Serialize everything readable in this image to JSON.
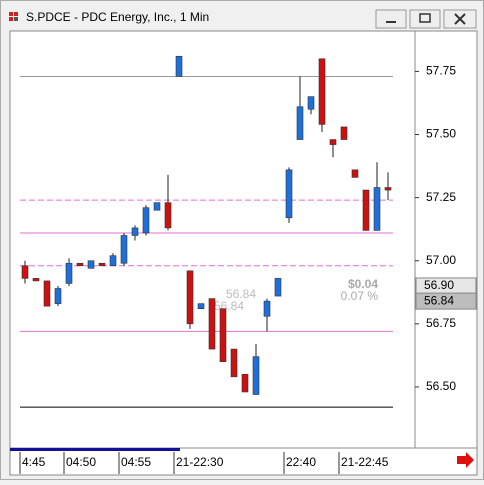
{
  "window": {
    "title": "S.PDCE - PDC Energy, Inc., 1 Min"
  },
  "chart_data": {
    "type": "candlestick",
    "categories": [
      "4:45",
      null,
      null,
      null,
      "04:50",
      null,
      null,
      null,
      null,
      "04:55",
      null,
      null,
      null,
      null,
      "21-22:30",
      null,
      null,
      null,
      null,
      null,
      null,
      null,
      null,
      null,
      "22:40",
      null,
      null,
      null,
      null,
      "21-22:45",
      null,
      null,
      null,
      null
    ],
    "open": [
      56.98,
      56.93,
      56.92,
      56.83,
      56.91,
      56.99,
      56.97,
      56.99,
      56.98,
      56.99,
      57.1,
      57.11,
      57.2,
      57.23,
      57.73,
      56.96,
      56.81,
      56.85,
      56.81,
      56.65,
      56.55,
      56.47,
      56.78,
      56.86,
      57.17,
      57.48,
      57.6,
      57.8,
      57.48,
      57.53,
      57.36,
      57.28,
      57.12,
      57.29
    ],
    "high": [
      57.0,
      56.93,
      56.92,
      56.9,
      57.01,
      56.99,
      57.0,
      56.99,
      57.03,
      57.11,
      57.14,
      57.22,
      57.23,
      57.34,
      57.81,
      56.96,
      56.83,
      56.85,
      56.81,
      56.65,
      56.55,
      56.67,
      56.85,
      56.93,
      57.37,
      57.73,
      57.65,
      57.8,
      57.48,
      57.53,
      57.36,
      57.28,
      57.39,
      57.35
    ],
    "low": [
      56.91,
      56.92,
      56.82,
      56.82,
      56.9,
      56.98,
      56.97,
      56.98,
      56.98,
      56.98,
      57.08,
      57.1,
      57.2,
      57.12,
      57.73,
      56.73,
      56.81,
      56.65,
      56.6,
      56.54,
      56.48,
      56.47,
      56.72,
      56.86,
      57.15,
      57.48,
      57.58,
      57.51,
      57.41,
      57.48,
      57.33,
      57.12,
      57.12,
      57.24
    ],
    "close": [
      56.93,
      56.92,
      56.82,
      56.89,
      56.99,
      56.98,
      57.0,
      56.98,
      57.02,
      57.1,
      57.13,
      57.21,
      57.23,
      57.13,
      57.81,
      56.75,
      56.83,
      56.65,
      56.6,
      56.54,
      56.48,
      56.62,
      56.84,
      56.93,
      57.36,
      57.61,
      57.65,
      57.54,
      57.46,
      57.48,
      57.33,
      57.12,
      57.29,
      57.28
    ],
    "up_color": "#1e6fd9",
    "down_color": "#cc1111",
    "ylim": [
      56.27,
      57.91
    ],
    "yticks": [
      57.75,
      {
        "value": 57.5,
        "label": "57.50"
      },
      57.25,
      {
        "value": 57,
        "label": "57.00"
      },
      56.75,
      {
        "value": 56.5,
        "label": "56.50"
      }
    ],
    "levels": [
      {
        "value": 57.73,
        "color": "#999999",
        "dashed": false
      },
      {
        "value": 57.24,
        "color": "#e070d0",
        "dashed": true
      },
      {
        "value": 57.11,
        "color": "#e070d0",
        "dashed": false
      },
      {
        "value": 56.98,
        "color": "#e070d0",
        "dashed": true
      },
      {
        "value": 56.72,
        "color": "#e070d0",
        "dashed": false
      },
      {
        "value": 56.42,
        "color": "#000000",
        "dashed": false
      }
    ],
    "price_labels": [
      {
        "value": 56.9,
        "label": "56.90"
      },
      {
        "value": 56.84,
        "label": "56.84"
      }
    ],
    "change_labels": [
      "$0.04",
      "0.07 %"
    ],
    "overlay_labels": [
      "56.84",
      "56.84"
    ]
  }
}
